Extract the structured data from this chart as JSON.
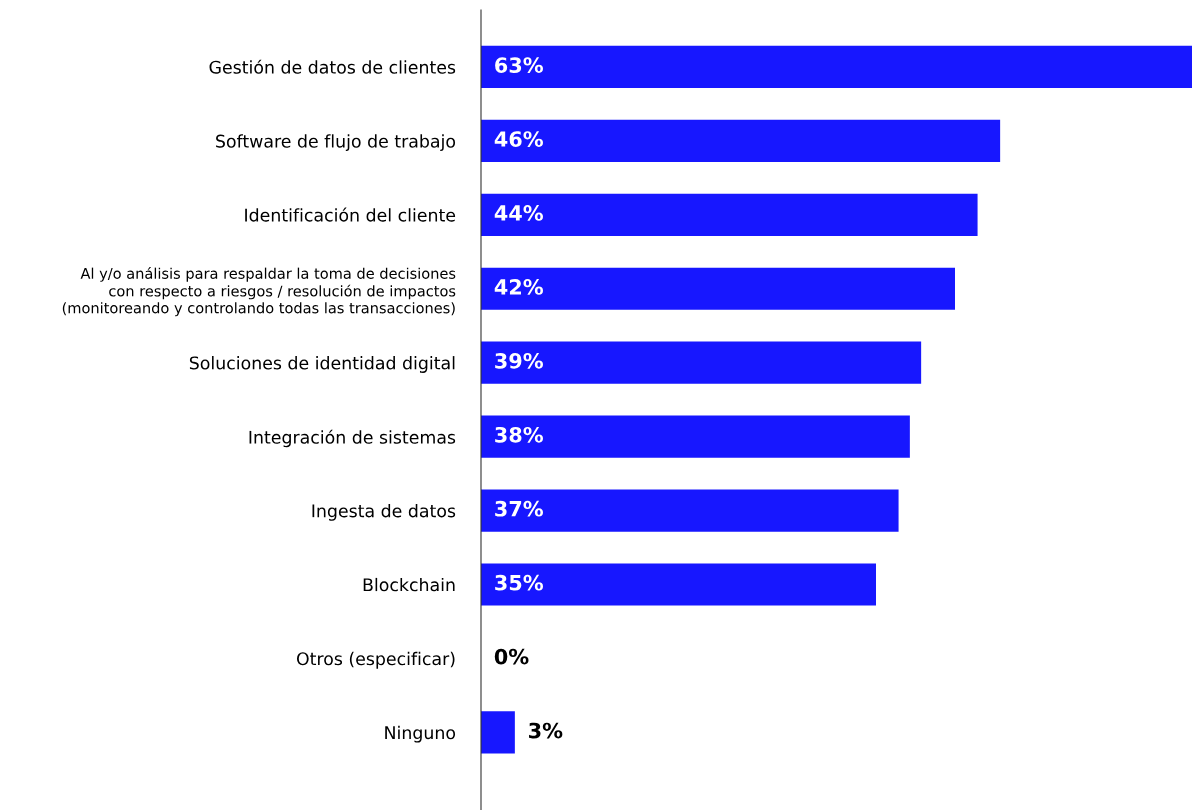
{
  "chart_data": {
    "type": "bar",
    "orientation": "horizontal",
    "categories": [
      "Gestión de datos de clientes",
      "Software de flujo de trabajo",
      "Identificación del cliente",
      "Al y/o análisis para respaldar la toma de decisiones\ncon respecto a riesgos / resolución de impactos\n(monitoreando y controlando todas las transacciones)",
      "Soluciones de identidad digital",
      "Integración de sistemas",
      "Ingesta de datos",
      "Blockchain",
      "Otros (especificar)",
      "Ninguno"
    ],
    "values": [
      63,
      46,
      44,
      42,
      39,
      38,
      37,
      35,
      0,
      3
    ],
    "value_labels": [
      "63%",
      "46%",
      "44%",
      "42%",
      "39%",
      "38%",
      "37%",
      "35%",
      "0%",
      "3%"
    ],
    "color": "#1717ff",
    "grid": false,
    "legend": false
  }
}
